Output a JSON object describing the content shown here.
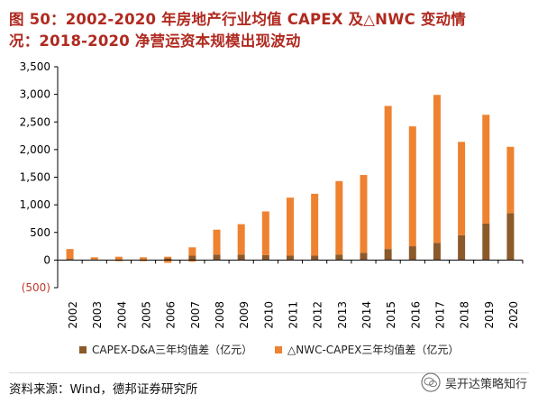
{
  "header": {
    "title_line1": "图 50：2002-2020 年房地产行业均值 CAPEX 及△NWC 变动情",
    "title_line2": "况：2018-2020 净营运资本规模出现波动"
  },
  "footer": {
    "source": "资料来源：Wind，德邦证券研究所",
    "watermark": "吴开达策略知行"
  },
  "colors": {
    "series1": "#8b5a2b",
    "series2": "#ee8230",
    "title": "#b02a20",
    "negative_label": "#c0392b"
  },
  "chart_data": {
    "type": "bar",
    "stacked": true,
    "categories": [
      "2002",
      "2003",
      "2004",
      "2005",
      "2006",
      "2007",
      "2008",
      "2009",
      "2010",
      "2011",
      "2012",
      "2013",
      "2014",
      "2015",
      "2016",
      "2017",
      "2018",
      "2019",
      "2020"
    ],
    "series": [
      {
        "name": "CAPEX-D&A三年均值差（亿元）",
        "values": [
          20,
          10,
          10,
          10,
          30,
          80,
          100,
          100,
          90,
          80,
          80,
          100,
          130,
          200,
          250,
          310,
          450,
          660,
          850
        ]
      },
      {
        "name": "△NWC-CAPEX三年均值差（亿元）",
        "values": [
          180,
          40,
          50,
          40,
          30,
          150,
          450,
          550,
          790,
          1050,
          1120,
          1330,
          1410,
          2590,
          2170,
          2680,
          1690,
          1970,
          1200
        ]
      }
    ],
    "negative_hint": [
      0,
      0,
      -20,
      -20,
      -50,
      -30,
      0,
      0,
      0,
      0,
      0,
      0,
      0,
      0,
      0,
      0,
      0,
      0,
      0
    ],
    "ylim": [
      -500,
      3500
    ],
    "yticks": [
      -500,
      0,
      500,
      1000,
      1500,
      2000,
      2500,
      3000,
      3500
    ],
    "ytick_labels": [
      "(500)",
      "0",
      "500",
      "1,000",
      "1,500",
      "2,000",
      "2,500",
      "3,000",
      "3,500"
    ],
    "legend_position": "bottom",
    "grid": false
  }
}
